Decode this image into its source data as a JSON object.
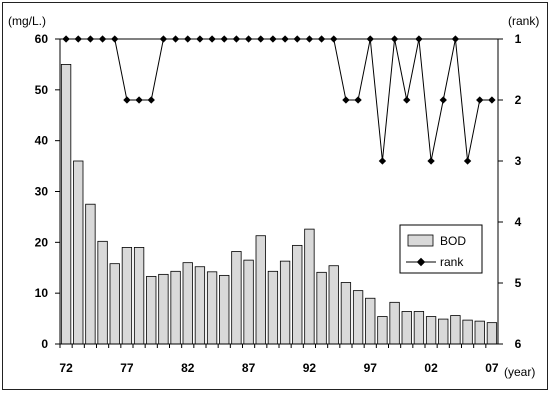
{
  "chart_data": {
    "type": "bar+line",
    "y_unit_left": "(mg/L.)",
    "y_unit_right": "(rank)",
    "x_unit": "(year)",
    "ylim_left": [
      0,
      60
    ],
    "ylim_right": [
      1,
      6
    ],
    "right_axis_inverted": true,
    "left_ticks": [
      "0",
      "10",
      "20",
      "30",
      "40",
      "50",
      "60"
    ],
    "right_ticks": [
      "1",
      "2",
      "3",
      "4",
      "5",
      "6"
    ],
    "x_tick_labels": [
      "72",
      "77",
      "82",
      "87",
      "92",
      "97",
      "02",
      "07"
    ],
    "years": [
      1972,
      1973,
      1974,
      1975,
      1976,
      1977,
      1978,
      1979,
      1980,
      1981,
      1982,
      1983,
      1984,
      1985,
      1986,
      1987,
      1988,
      1989,
      1990,
      1991,
      1992,
      1993,
      1994,
      1995,
      1996,
      1997,
      1998,
      1999,
      2000,
      2001,
      2002,
      2003,
      2004,
      2005,
      2006,
      2007
    ],
    "series": [
      {
        "name": "BOD",
        "kind": "bar",
        "color": "#d9d9d9",
        "values": [
          55,
          36,
          27.5,
          20.2,
          15.8,
          19,
          19,
          13.3,
          13.7,
          14.3,
          16,
          15.2,
          14.2,
          13.5,
          18.2,
          16.5,
          21.3,
          14.3,
          16.3,
          19.4,
          22.6,
          14.1,
          15.4,
          12.1,
          10.5,
          9,
          5.4,
          8.2,
          6.4,
          6.4,
          5.4,
          4.9,
          5.6,
          4.7,
          4.5,
          4.2
        ]
      },
      {
        "name": "rank",
        "kind": "line",
        "color": "#000000",
        "values": [
          1,
          1,
          1,
          1,
          1,
          2,
          2,
          2,
          1,
          1,
          1,
          1,
          1,
          1,
          1,
          1,
          1,
          1,
          1,
          1,
          1,
          1,
          1,
          2,
          2,
          1,
          3,
          1,
          2,
          1,
          3,
          2,
          1,
          3,
          2,
          2
        ]
      }
    ],
    "legend_position": "right-middle",
    "grid": false
  }
}
